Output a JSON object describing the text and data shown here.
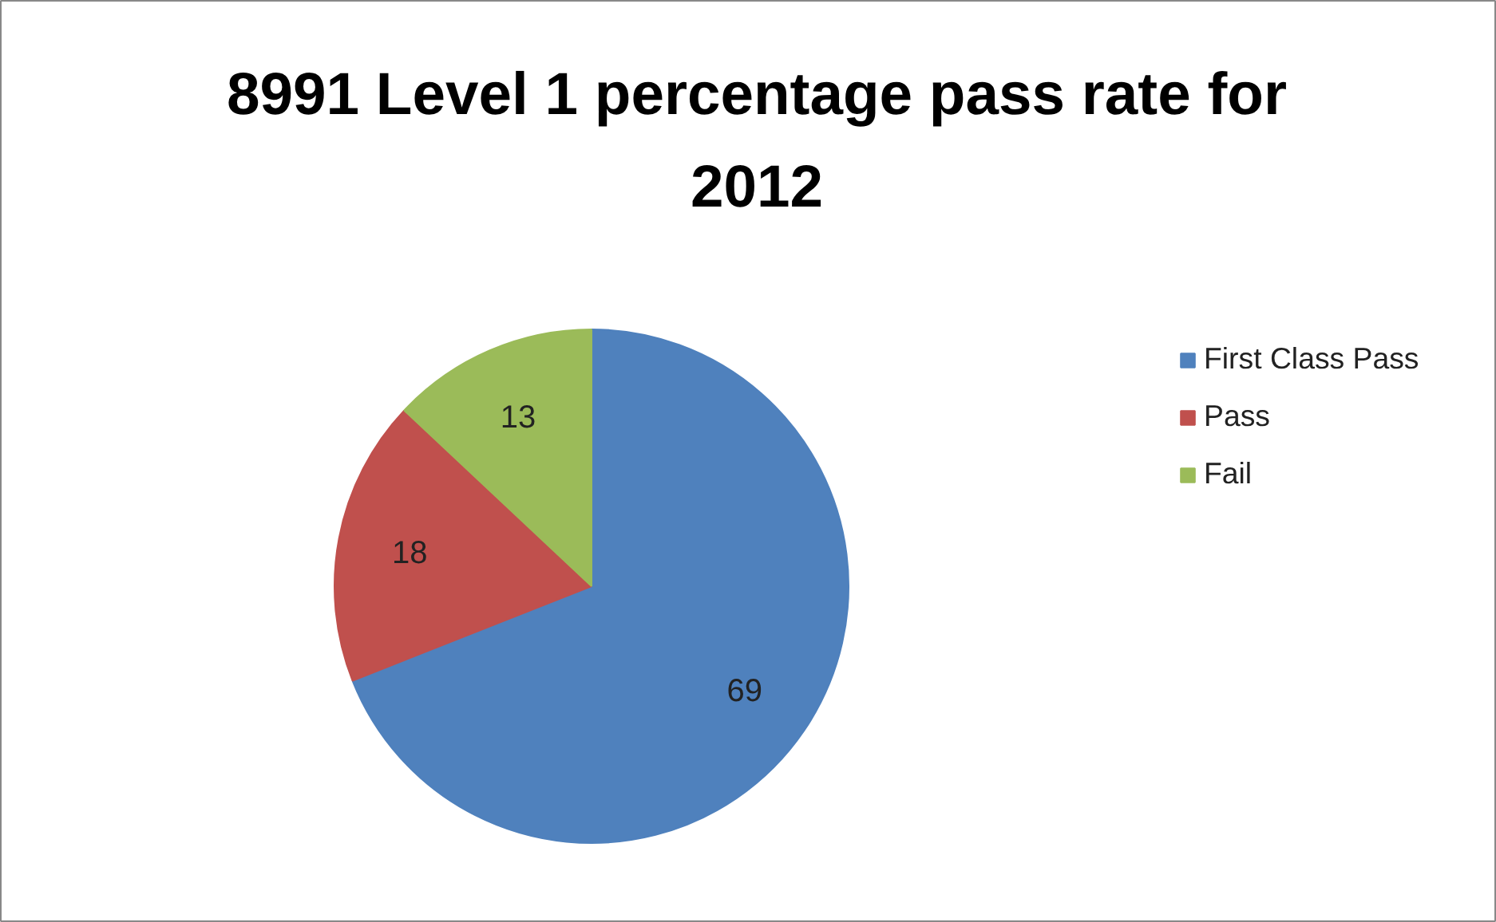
{
  "chart_data": {
    "type": "pie",
    "title": "8991 Level 1 percentage pass rate for 2012",
    "categories": [
      "First Class Pass",
      "Pass",
      "Fail"
    ],
    "values": [
      69,
      18,
      13
    ],
    "colors": [
      "#4f81bd",
      "#c0504d",
      "#9bbb59"
    ],
    "data_labels": true,
    "legend": "right"
  }
}
